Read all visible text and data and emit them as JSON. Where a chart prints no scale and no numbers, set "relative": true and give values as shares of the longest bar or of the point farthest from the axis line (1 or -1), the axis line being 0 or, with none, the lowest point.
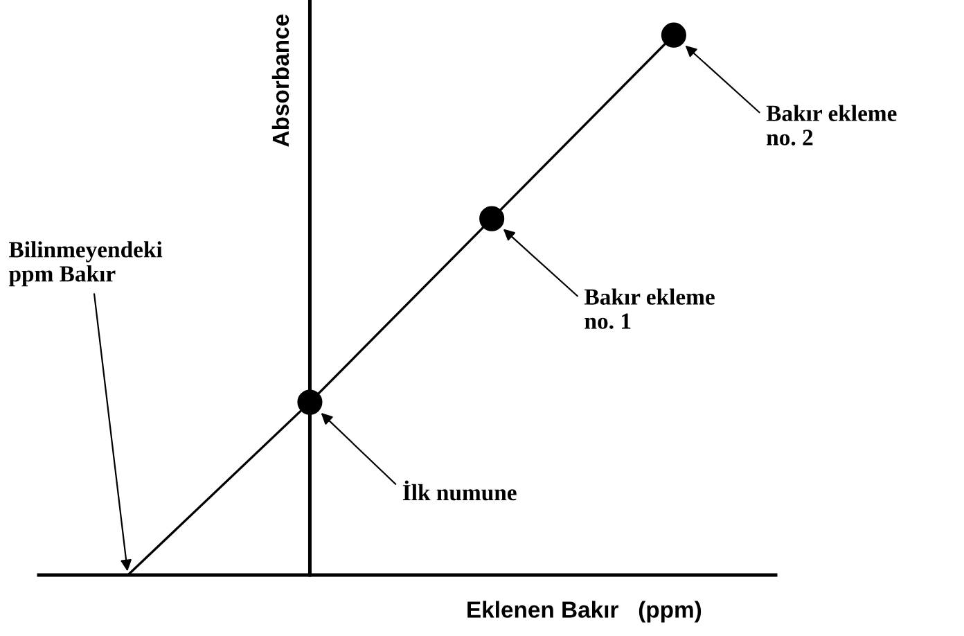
{
  "chart_data": {
    "type": "line",
    "relative": true,
    "xlabel": "Eklenen Bakır   (ppm)",
    "ylabel": "Absorbance",
    "categories": [
      null,
      null,
      null,
      null
    ],
    "series": [
      {
        "color": "#000000",
        "values": [
          0,
          0.32,
          0.66,
          1
        ],
        "marker": "circle"
      }
    ],
    "annotations": [
      "Bilinmeyendeki\nppm Bakır",
      "İlk numune",
      "Bakır ekleme\nno. 1",
      "Bakır ekleme\nno. 2"
    ]
  }
}
